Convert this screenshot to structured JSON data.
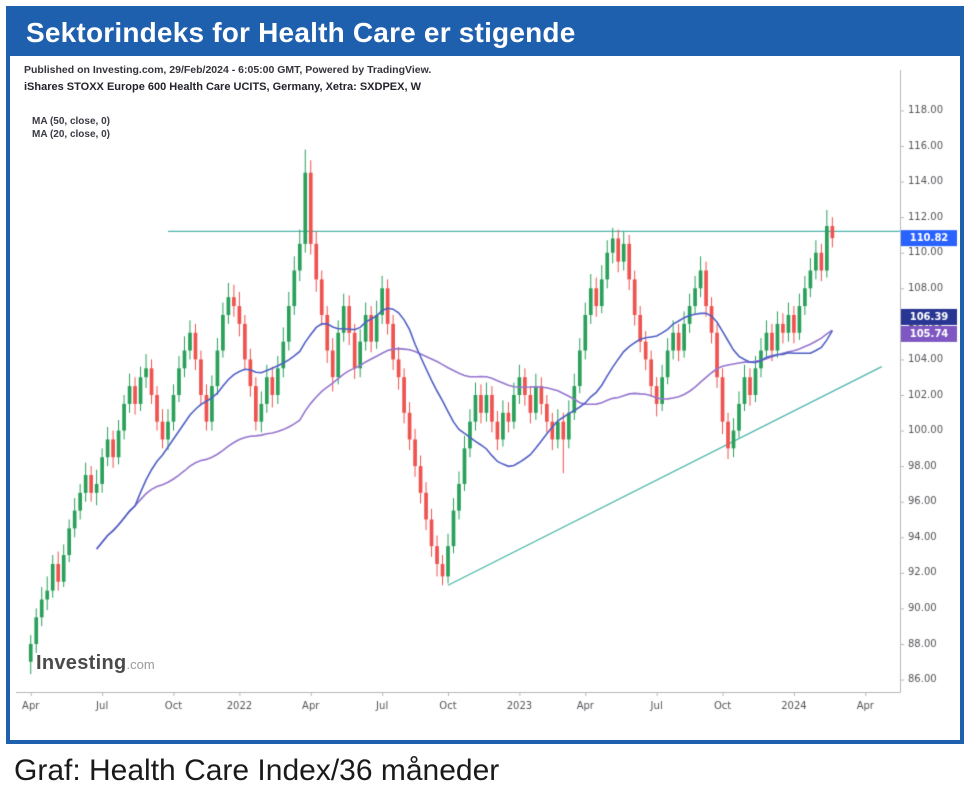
{
  "theme": {
    "accent": "#1e5fae",
    "caption_color": "#1a1a1a"
  },
  "header": {
    "title": "Sektorindeks for Health Care er stigende"
  },
  "chart": {
    "published_line": "Published on Investing.com, 29/Feb/2024 - 6:05:00 GMT, Powered by TradingView.",
    "symbol_line": "iShares STOXX Europe 600 Health Care UCITS, Germany, Xetra: SXDPEX, W",
    "ma50_legend": "MA (50, close, 0)",
    "ma20_legend": "MA (20, close, 0)",
    "watermark_bold": "Investing",
    "watermark_light": ".com"
  },
  "caption": {
    "text": "Graf: Health Care Index/36 måneder"
  },
  "chart_data": {
    "type": "candlestick",
    "title": "iShares STOXX Europe 600 Health Care UCITS, Germany, Xetra: SXDPEX, W",
    "interval": "W",
    "ylim": [
      85.3,
      119.6
    ],
    "x_slots": 157,
    "y_ticks": [
      86,
      88,
      90,
      92,
      94,
      96,
      98,
      100,
      102,
      104,
      106,
      108,
      110,
      112,
      114,
      116,
      118
    ],
    "x_ticks": [
      {
        "index": 0,
        "label": "Apr"
      },
      {
        "index": 13,
        "label": "Jul"
      },
      {
        "index": 26,
        "label": "Oct"
      },
      {
        "index": 38,
        "label": "2022"
      },
      {
        "index": 51,
        "label": "Apr"
      },
      {
        "index": 64,
        "label": "Jul"
      },
      {
        "index": 76,
        "label": "Oct"
      },
      {
        "index": 89,
        "label": "2023"
      },
      {
        "index": 101,
        "label": "Apr"
      },
      {
        "index": 114,
        "label": "Jul"
      },
      {
        "index": 126,
        "label": "Oct"
      },
      {
        "index": 139,
        "label": "2024"
      },
      {
        "index": 152,
        "label": "Apr"
      }
    ],
    "colors": {
      "up": "#2aa05a",
      "down": "#ef5350",
      "axis": "#b8b8bc",
      "tick_text": "#55565a"
    },
    "candles": [
      [
        87.0,
        88.5,
        86.3,
        88.0
      ],
      [
        88.0,
        90.0,
        87.5,
        89.5
      ],
      [
        89.5,
        91.2,
        89.0,
        90.5
      ],
      [
        90.5,
        91.8,
        89.9,
        91.0
      ],
      [
        91.0,
        93.0,
        90.6,
        92.5
      ],
      [
        92.5,
        93.2,
        91.0,
        91.5
      ],
      [
        91.5,
        93.6,
        91.2,
        93.0
      ],
      [
        93.0,
        95.0,
        92.6,
        94.5
      ],
      [
        94.5,
        96.2,
        94.0,
        95.5
      ],
      [
        95.5,
        97.0,
        95.0,
        96.5
      ],
      [
        96.5,
        98.2,
        96.0,
        97.5
      ],
      [
        97.5,
        98.0,
        96.0,
        96.5
      ],
      [
        96.5,
        97.8,
        95.8,
        97.0
      ],
      [
        97.0,
        99.0,
        96.5,
        98.5
      ],
      [
        98.5,
        100.2,
        98.0,
        99.5
      ],
      [
        99.5,
        100.0,
        97.9,
        98.5
      ],
      [
        98.5,
        100.6,
        98.1,
        100.0
      ],
      [
        100.0,
        102.0,
        99.5,
        101.5
      ],
      [
        101.5,
        103.2,
        101.0,
        102.5
      ],
      [
        102.5,
        103.0,
        100.9,
        101.5
      ],
      [
        101.5,
        103.6,
        101.1,
        103.0
      ],
      [
        103.0,
        104.3,
        102.4,
        103.5
      ],
      [
        103.5,
        104.0,
        101.5,
        102.0
      ],
      [
        102.0,
        102.5,
        100.0,
        100.5
      ],
      [
        100.5,
        101.2,
        99.0,
        99.5
      ],
      [
        99.5,
        101.2,
        98.9,
        100.5
      ],
      [
        100.5,
        102.6,
        100.0,
        102.0
      ],
      [
        102.0,
        104.2,
        101.6,
        103.5
      ],
      [
        103.5,
        105.3,
        103.0,
        104.5
      ],
      [
        104.5,
        106.2,
        104.0,
        105.5
      ],
      [
        105.5,
        106.0,
        103.4,
        104.0
      ],
      [
        104.0,
        104.5,
        101.4,
        102.0
      ],
      [
        102.0,
        102.6,
        100.0,
        100.5
      ],
      [
        100.5,
        103.1,
        100.0,
        102.5
      ],
      [
        102.5,
        105.2,
        102.0,
        104.5
      ],
      [
        104.5,
        107.2,
        104.1,
        106.5
      ],
      [
        106.5,
        108.3,
        106.0,
        107.5
      ],
      [
        107.5,
        108.2,
        106.4,
        107.0
      ],
      [
        107.0,
        107.8,
        105.3,
        106.0
      ],
      [
        106.0,
        106.5,
        103.4,
        104.0
      ],
      [
        104.0,
        104.6,
        101.9,
        102.5
      ],
      [
        102.5,
        103.0,
        100.0,
        100.5
      ],
      [
        100.5,
        102.2,
        99.9,
        101.5
      ],
      [
        101.5,
        103.7,
        101.0,
        103.0
      ],
      [
        103.0,
        103.6,
        101.3,
        102.0
      ],
      [
        102.0,
        104.2,
        101.5,
        103.5
      ],
      [
        103.5,
        105.8,
        103.0,
        105.0
      ],
      [
        105.0,
        107.8,
        104.5,
        107.0
      ],
      [
        107.0,
        109.8,
        106.5,
        109.0
      ],
      [
        109.0,
        111.3,
        108.4,
        110.5
      ],
      [
        110.5,
        115.8,
        110.0,
        114.5
      ],
      [
        114.5,
        115.2,
        109.9,
        110.5
      ],
      [
        110.5,
        111.2,
        107.8,
        108.5
      ],
      [
        108.5,
        109.0,
        105.9,
        106.5
      ],
      [
        106.5,
        107.0,
        103.8,
        104.5
      ],
      [
        104.5,
        105.2,
        102.2,
        103.0
      ],
      [
        103.0,
        106.2,
        102.6,
        105.5
      ],
      [
        105.5,
        107.7,
        105.0,
        107.0
      ],
      [
        107.0,
        107.6,
        104.8,
        105.5
      ],
      [
        105.5,
        106.0,
        102.9,
        103.5
      ],
      [
        103.5,
        105.7,
        103.0,
        105.0
      ],
      [
        105.0,
        107.2,
        104.5,
        106.5
      ],
      [
        106.5,
        107.0,
        104.4,
        105.0
      ],
      [
        105.0,
        107.3,
        104.6,
        106.5
      ],
      [
        106.5,
        108.7,
        106.0,
        108.0
      ],
      [
        108.0,
        108.5,
        105.4,
        106.0
      ],
      [
        106.0,
        106.5,
        103.4,
        104.0
      ],
      [
        104.0,
        104.7,
        102.3,
        103.0
      ],
      [
        103.0,
        103.5,
        100.4,
        101.0
      ],
      [
        101.0,
        101.6,
        98.9,
        99.5
      ],
      [
        99.5,
        100.1,
        97.4,
        98.0
      ],
      [
        98.0,
        98.6,
        95.9,
        96.5
      ],
      [
        96.5,
        97.1,
        94.4,
        95.0
      ],
      [
        95.0,
        95.6,
        92.9,
        93.5
      ],
      [
        93.5,
        94.1,
        91.8,
        92.5
      ],
      [
        92.5,
        93.0,
        91.3,
        91.8
      ],
      [
        91.8,
        94.2,
        91.4,
        93.5
      ],
      [
        93.5,
        96.2,
        93.1,
        95.5
      ],
      [
        95.5,
        97.7,
        95.0,
        97.0
      ],
      [
        97.0,
        99.7,
        96.6,
        99.0
      ],
      [
        99.0,
        101.2,
        98.5,
        100.5
      ],
      [
        100.5,
        102.7,
        100.0,
        102.0
      ],
      [
        102.0,
        102.6,
        100.4,
        101.0
      ],
      [
        101.0,
        102.7,
        100.5,
        102.0
      ],
      [
        102.0,
        102.5,
        99.9,
        100.5
      ],
      [
        100.5,
        101.1,
        98.9,
        99.5
      ],
      [
        99.5,
        101.7,
        99.1,
        101.0
      ],
      [
        101.0,
        101.6,
        99.9,
        100.5
      ],
      [
        100.5,
        102.7,
        100.1,
        102.0
      ],
      [
        102.0,
        103.7,
        101.5,
        103.0
      ],
      [
        103.0,
        103.5,
        101.4,
        102.0
      ],
      [
        102.0,
        102.5,
        100.4,
        101.0
      ],
      [
        101.0,
        103.2,
        100.6,
        102.5
      ],
      [
        102.5,
        103.0,
        100.9,
        101.5
      ],
      [
        101.5,
        102.0,
        99.9,
        100.5
      ],
      [
        100.5,
        101.0,
        98.9,
        99.5
      ],
      [
        99.5,
        101.2,
        99.0,
        100.5
      ],
      [
        100.5,
        101.0,
        97.6,
        99.5
      ],
      [
        99.5,
        101.7,
        99.0,
        101.0
      ],
      [
        101.0,
        103.2,
        100.6,
        102.5
      ],
      [
        102.5,
        105.2,
        102.1,
        104.5
      ],
      [
        104.5,
        107.2,
        104.0,
        106.5
      ],
      [
        106.5,
        108.8,
        106.0,
        108.0
      ],
      [
        108.0,
        108.6,
        106.4,
        107.0
      ],
      [
        107.0,
        109.3,
        106.6,
        108.5
      ],
      [
        108.5,
        110.7,
        108.0,
        110.0
      ],
      [
        110.0,
        111.4,
        109.4,
        110.8
      ],
      [
        110.8,
        111.3,
        108.9,
        109.5
      ],
      [
        109.5,
        111.2,
        109.0,
        110.5
      ],
      [
        110.5,
        111.0,
        107.9,
        108.5
      ],
      [
        108.5,
        109.0,
        105.9,
        106.5
      ],
      [
        106.5,
        107.0,
        104.4,
        105.0
      ],
      [
        105.0,
        105.6,
        103.4,
        104.0
      ],
      [
        104.0,
        104.5,
        101.9,
        102.5
      ],
      [
        102.5,
        103.0,
        100.8,
        101.5
      ],
      [
        101.5,
        103.7,
        101.1,
        103.0
      ],
      [
        103.0,
        105.2,
        102.6,
        104.5
      ],
      [
        104.5,
        106.2,
        104.0,
        105.5
      ],
      [
        105.5,
        106.0,
        103.9,
        104.5
      ],
      [
        104.5,
        106.7,
        104.1,
        106.0
      ],
      [
        106.0,
        107.7,
        105.5,
        107.0
      ],
      [
        107.0,
        108.7,
        106.5,
        108.0
      ],
      [
        108.0,
        109.8,
        107.5,
        109.0
      ],
      [
        109.0,
        109.5,
        106.4,
        107.0
      ],
      [
        107.0,
        107.5,
        104.9,
        105.5
      ],
      [
        105.5,
        106.0,
        102.4,
        103.0
      ],
      [
        103.0,
        103.5,
        99.8,
        100.5
      ],
      [
        100.5,
        101.0,
        98.4,
        99.0
      ],
      [
        99.0,
        100.7,
        98.5,
        100.0
      ],
      [
        100.0,
        102.2,
        99.6,
        101.5
      ],
      [
        101.5,
        103.7,
        101.1,
        103.0
      ],
      [
        103.0,
        103.5,
        101.4,
        102.0
      ],
      [
        102.0,
        104.2,
        101.6,
        103.5
      ],
      [
        103.5,
        105.2,
        103.0,
        104.5
      ],
      [
        104.5,
        106.2,
        104.0,
        105.5
      ],
      [
        105.5,
        106.0,
        103.9,
        104.5
      ],
      [
        104.5,
        106.7,
        104.1,
        106.0
      ],
      [
        106.0,
        106.6,
        104.9,
        105.5
      ],
      [
        105.5,
        107.2,
        105.0,
        106.5
      ],
      [
        106.5,
        107.0,
        104.9,
        105.5
      ],
      [
        105.5,
        107.7,
        105.1,
        107.0
      ],
      [
        107.0,
        108.7,
        106.5,
        108.0
      ],
      [
        108.0,
        109.7,
        107.5,
        109.0
      ],
      [
        109.0,
        110.7,
        108.5,
        110.0
      ],
      [
        110.0,
        110.5,
        108.4,
        109.0
      ],
      [
        109.0,
        112.4,
        108.6,
        111.5
      ],
      [
        111.5,
        112.0,
        110.3,
        110.82
      ]
    ],
    "overlays": {
      "ma20": {
        "period": 20,
        "color": "#4f5fc4",
        "badge_color": "#283593",
        "last_value": 106.39
      },
      "ma50": {
        "period": 50,
        "color": "#9575cd",
        "badge_color": "#7e57c2",
        "last_value": 105.74
      }
    },
    "last_price": {
      "value": 110.82,
      "badge_color": "#2962ff"
    },
    "lines": {
      "horizontal": {
        "price": 111.2,
        "from_index": 25,
        "color": "#4db6ac"
      },
      "trend": {
        "from_index": 76,
        "from_price": 91.3,
        "to_index": 155,
        "to_price": 103.6,
        "color": "#4db6ac"
      }
    }
  }
}
